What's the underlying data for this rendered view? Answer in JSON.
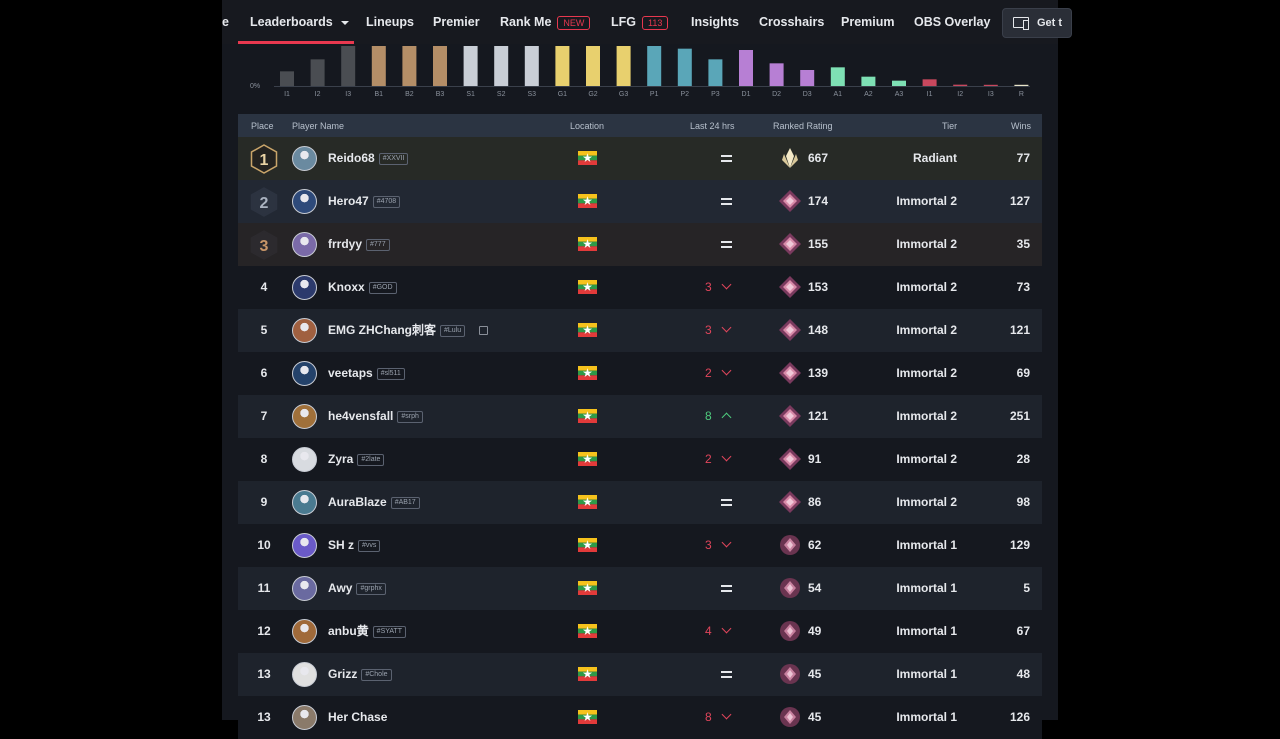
{
  "nav": {
    "leading_fragment": "e",
    "items": [
      {
        "label": "Leaderboards",
        "active": true
      },
      {
        "label": "Lineups"
      },
      {
        "label": "Premier"
      },
      {
        "label": "Rank Me",
        "badge": "NEW"
      },
      {
        "label": "LFG",
        "badge": "113"
      },
      {
        "label": "Insights"
      },
      {
        "label": "Crosshairs"
      },
      {
        "label": "Premium"
      },
      {
        "label": "OBS Overlay"
      }
    ],
    "get_button_label": "Get t"
  },
  "distribution": {
    "y_tick_label": "0%",
    "chart_data": {
      "type": "bar",
      "categories": [
        "I1",
        "I2",
        "I3",
        "B1",
        "B2",
        "B3",
        "S1",
        "S2",
        "S3",
        "G1",
        "G2",
        "G3",
        "P1",
        "P2",
        "P3",
        "D1",
        "D2",
        "D3",
        "A1",
        "A2",
        "A3",
        "I1",
        "I2",
        "I3",
        "R"
      ],
      "values": [
        1.1,
        2.0,
        3.0,
        3.0,
        3.0,
        3.0,
        3.0,
        3.0,
        3.0,
        3.0,
        3.0,
        3.0,
        3.0,
        2.8,
        2.0,
        2.7,
        1.7,
        1.2,
        1.4,
        0.7,
        0.4,
        0.5,
        0.1,
        0.06,
        0.08
      ],
      "colors": [
        "#4a4d52",
        "#4a4d52",
        "#4a4d52",
        "#b48e67",
        "#b48e67",
        "#b48e67",
        "#c9ced6",
        "#c9ced6",
        "#c9ced6",
        "#e8d06e",
        "#e8d06e",
        "#e8d06e",
        "#5aa6b8",
        "#5aa6b8",
        "#5aa6b8",
        "#b77fd4",
        "#b77fd4",
        "#b77fd4",
        "#7ee0b4",
        "#7ee0b4",
        "#7ee0b4",
        "#c9485e",
        "#c9485e",
        "#c9485e",
        "#e8e4c9"
      ],
      "ylim": [
        0,
        3.0
      ]
    }
  },
  "table": {
    "headers": {
      "place": "Place",
      "player": "Player Name",
      "location": "Location",
      "last24": "Last 24 hrs",
      "rating": "Ranked Rating",
      "tier": "Tier",
      "wins": "Wins"
    },
    "rows": [
      {
        "place": "1",
        "name": "Reido68",
        "tag": "#XXVII",
        "delta": "=",
        "trend": "same",
        "rating": "667",
        "tier": "Radiant",
        "wins": "77",
        "rank_icon": "radiant-icon"
      },
      {
        "place": "2",
        "name": "Hero47",
        "tag": "#4708",
        "delta": "=",
        "trend": "same",
        "rating": "174",
        "tier": "Immortal 2",
        "wins": "127",
        "rank_icon": "immortal-icon"
      },
      {
        "place": "3",
        "name": "frrdyy",
        "tag": "#777",
        "delta": "=",
        "trend": "same",
        "rating": "155",
        "tier": "Immortal 2",
        "wins": "35",
        "rank_icon": "immortal-icon"
      },
      {
        "place": "4",
        "name": "Knoxx",
        "tag": "#GOD",
        "delta": "3",
        "trend": "down",
        "rating": "153",
        "tier": "Immortal 2",
        "wins": "73",
        "rank_icon": "immortal-icon"
      },
      {
        "place": "5",
        "name": "EMG ZHChang刺客",
        "tag": "#Lulu",
        "delta": "3",
        "trend": "down",
        "rating": "148",
        "tier": "Immortal 2",
        "wins": "121",
        "rank_icon": "immortal-icon",
        "stream": true
      },
      {
        "place": "6",
        "name": "veetaps",
        "tag": "#sl511",
        "delta": "2",
        "trend": "down",
        "rating": "139",
        "tier": "Immortal 2",
        "wins": "69",
        "rank_icon": "immortal-icon"
      },
      {
        "place": "7",
        "name": "he4vensfall",
        "tag": "#srph",
        "delta": "8",
        "trend": "up",
        "rating": "121",
        "tier": "Immortal 2",
        "wins": "251",
        "rank_icon": "immortal-icon"
      },
      {
        "place": "8",
        "name": "Zyra",
        "tag": "#2late",
        "delta": "2",
        "trend": "down",
        "rating": "91",
        "tier": "Immortal 2",
        "wins": "28",
        "rank_icon": "immortal-icon"
      },
      {
        "place": "9",
        "name": "AuraBlaze",
        "tag": "#AB17",
        "delta": "=",
        "trend": "same",
        "rating": "86",
        "tier": "Immortal 2",
        "wins": "98",
        "rank_icon": "immortal-icon"
      },
      {
        "place": "10",
        "name": "SH z",
        "tag": "#vvs",
        "delta": "3",
        "trend": "down",
        "rating": "62",
        "tier": "Immortal 1",
        "wins": "129",
        "rank_icon": "immortal1-icon"
      },
      {
        "place": "11",
        "name": "Awy",
        "tag": "#grphx",
        "delta": "=",
        "trend": "same",
        "rating": "54",
        "tier": "Immortal 1",
        "wins": "5",
        "rank_icon": "immortal1-icon"
      },
      {
        "place": "12",
        "name": "anbu黄",
        "tag": "#SYATT",
        "delta": "4",
        "trend": "down",
        "rating": "49",
        "tier": "Immortal 1",
        "wins": "67",
        "rank_icon": "immortal1-icon"
      },
      {
        "place": "13",
        "name": "Grizz",
        "tag": "#Chole",
        "delta": "=",
        "trend": "same",
        "rating": "45",
        "tier": "Immortal 1",
        "wins": "48",
        "rank_icon": "immortal1-icon"
      },
      {
        "place": "13",
        "name": "Her Chase",
        "tag": "",
        "delta": "8",
        "trend": "down",
        "rating": "45",
        "tier": "Immortal 1",
        "wins": "126",
        "rank_icon": "immortal1-icon"
      }
    ]
  },
  "colors": {
    "accent": "#e8384f",
    "down": "#e0455b",
    "up": "#4ecb7d",
    "row_dark": "#15181f",
    "row_light": "#1e232c"
  }
}
